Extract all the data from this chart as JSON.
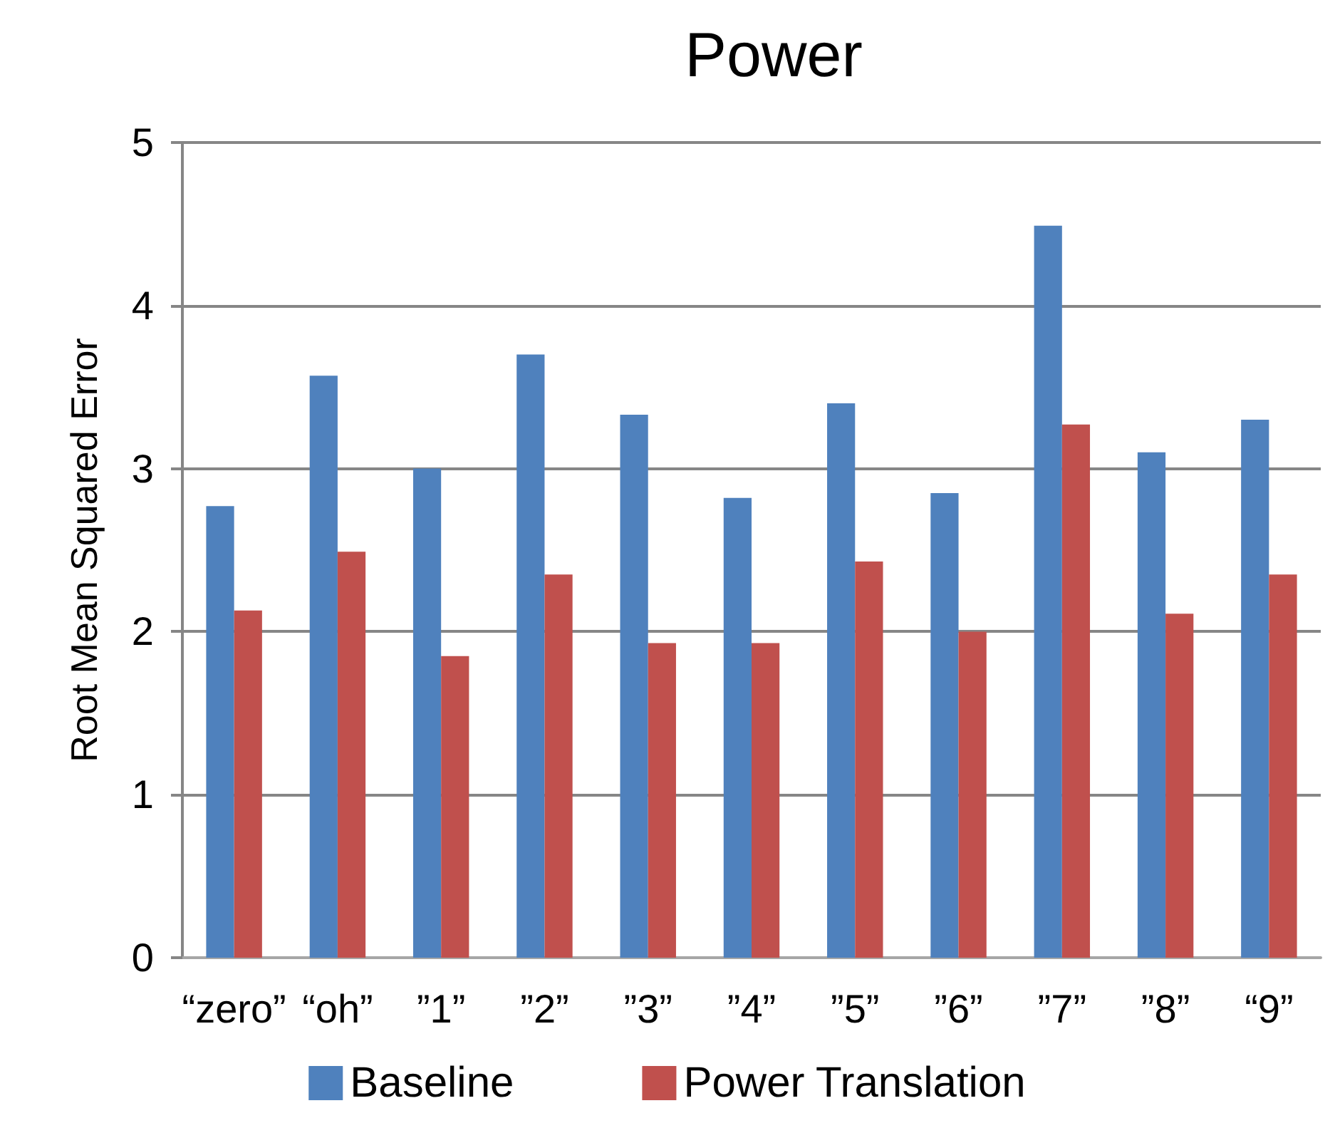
{
  "chart_data": {
    "type": "bar",
    "title": "Power",
    "ylabel": "Root Mean Squared Error",
    "categories": [
      "“zero”",
      "“oh”",
      "”1”",
      "”2”",
      "”3”",
      "”4”",
      "”5”",
      "”6”",
      "”7”",
      "”8”",
      "“9”"
    ],
    "series": [
      {
        "name": "Baseline",
        "color": "#4f81bd",
        "values": [
          2.77,
          3.57,
          3.0,
          3.7,
          3.33,
          2.82,
          3.4,
          2.85,
          4.49,
          3.1,
          3.3
        ]
      },
      {
        "name": "Power Translation",
        "color": "#c0504d",
        "values": [
          2.13,
          2.49,
          1.85,
          2.35,
          1.93,
          1.93,
          2.43,
          2.0,
          3.27,
          2.11,
          2.35
        ]
      }
    ],
    "ylim": [
      0,
      5
    ],
    "yticks": [
      0,
      1,
      2,
      3,
      4,
      5
    ],
    "grid": "y",
    "legend": "bottom"
  }
}
